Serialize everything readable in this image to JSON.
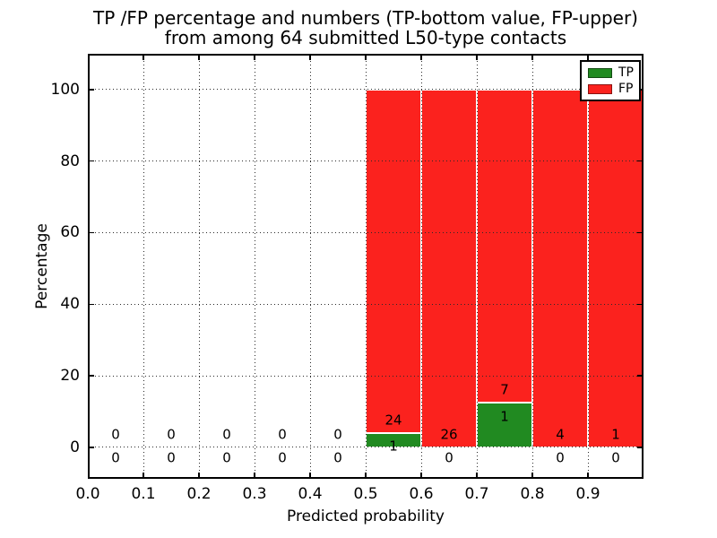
{
  "title": {
    "line1": "TP /FP percentage and numbers (TP-bottom value, FP-upper)",
    "line2": "from among 64 submitted L50-type contacts"
  },
  "chart_data": {
    "type": "bar",
    "stacked": true,
    "title": "TP /FP percentage and numbers (TP-bottom value, FP-upper) from among 64 submitted L50-type contacts",
    "xlabel": "Predicted probability",
    "ylabel": "Percentage",
    "xlim": [
      0.0,
      1.0
    ],
    "ylim": [
      -8.8,
      110.0
    ],
    "xticks": [
      0.0,
      0.1,
      0.2,
      0.3,
      0.4,
      0.5,
      0.6,
      0.7,
      0.8,
      0.9
    ],
    "xtick_labels": [
      "0.0",
      "0.1",
      "0.2",
      "0.3",
      "0.4",
      "0.5",
      "0.6",
      "0.7",
      "0.8",
      "0.9"
    ],
    "yticks": [
      0,
      20,
      40,
      60,
      80,
      100
    ],
    "grid": {
      "style": "dotted",
      "color": "#2a2a2a",
      "on": true
    },
    "colors": {
      "tp": "#218a21",
      "fp": "#fb221e",
      "bar_edge": "#ffffff",
      "spine": "#000000"
    },
    "legend": {
      "position": "upper-right",
      "items": [
        {
          "label": "TP",
          "color_key": "tp"
        },
        {
          "label": "FP",
          "color_key": "fp"
        }
      ]
    },
    "categories": [
      "0.0-0.1",
      "0.1-0.2",
      "0.2-0.3",
      "0.3-0.4",
      "0.4-0.5",
      "0.5-0.6",
      "0.6-0.7",
      "0.7-0.8",
      "0.8-0.9",
      "0.9-1.0"
    ],
    "series": [
      {
        "name": "TP",
        "counts": [
          0,
          0,
          0,
          0,
          0,
          1,
          0,
          1,
          0,
          0
        ],
        "percent": [
          0,
          0,
          0,
          0,
          0,
          4.0,
          0,
          12.5,
          0,
          0
        ]
      },
      {
        "name": "FP",
        "counts": [
          0,
          0,
          0,
          0,
          0,
          24,
          26,
          7,
          4,
          1
        ],
        "percent": [
          0,
          0,
          0,
          0,
          0,
          96.0,
          100,
          87.5,
          100,
          100
        ]
      }
    ],
    "bins": [
      {
        "range": [
          0.0,
          0.1
        ],
        "tp_count": 0,
        "fp_count": 0,
        "tp_pct": 0,
        "fp_pct": 0
      },
      {
        "range": [
          0.1,
          0.2
        ],
        "tp_count": 0,
        "fp_count": 0,
        "tp_pct": 0,
        "fp_pct": 0
      },
      {
        "range": [
          0.2,
          0.3
        ],
        "tp_count": 0,
        "fp_count": 0,
        "tp_pct": 0,
        "fp_pct": 0
      },
      {
        "range": [
          0.3,
          0.4
        ],
        "tp_count": 0,
        "fp_count": 0,
        "tp_pct": 0,
        "fp_pct": 0
      },
      {
        "range": [
          0.4,
          0.5
        ],
        "tp_count": 0,
        "fp_count": 0,
        "tp_pct": 0,
        "fp_pct": 0
      },
      {
        "range": [
          0.5,
          0.6
        ],
        "tp_count": 1,
        "fp_count": 24,
        "tp_pct": 4.0,
        "fp_pct": 96.0
      },
      {
        "range": [
          0.6,
          0.7
        ],
        "tp_count": 0,
        "fp_count": 26,
        "tp_pct": 0,
        "fp_pct": 100
      },
      {
        "range": [
          0.7,
          0.8
        ],
        "tp_count": 1,
        "fp_count": 7,
        "tp_pct": 12.5,
        "fp_pct": 87.5
      },
      {
        "range": [
          0.8,
          0.9
        ],
        "tp_count": 0,
        "fp_count": 4,
        "tp_pct": 0,
        "fp_pct": 100
      },
      {
        "range": [
          0.9,
          1.0
        ],
        "tp_count": 0,
        "fp_count": 1,
        "tp_pct": 0,
        "fp_pct": 100
      }
    ]
  }
}
